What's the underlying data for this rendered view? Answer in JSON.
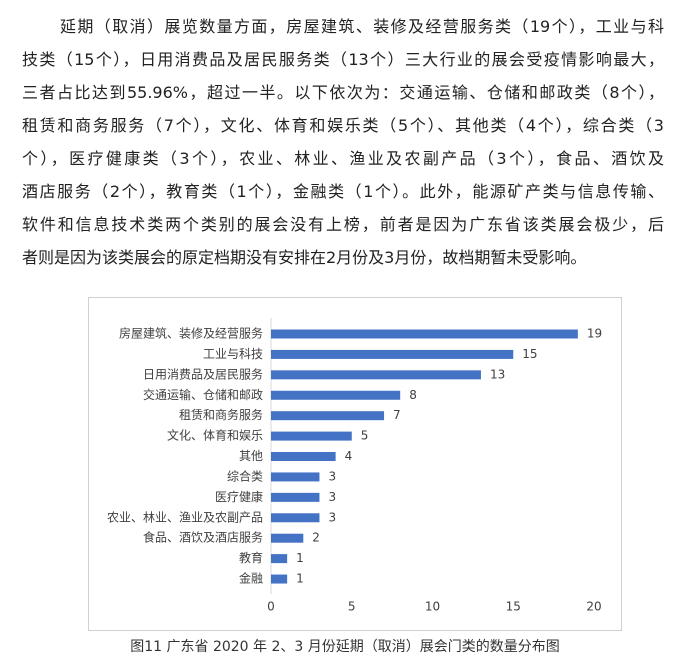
{
  "paragraph": [
    "延期（取消）展览数量方面，房屋建筑、装修及经营服务类（19个），工业与科",
    "技类（15个），日用消费品及居民服务类（13个）三大行业的展会受疫情影响最大，",
    "三者占比达到55.96%，超过一半。以下依次为：交通运输、仓储和邮政类（8个），",
    "租赁和商务服务（7个），文化、体育和娱乐类（5个）、其他类（4个），综合类（3",
    "个），医疗健康类（3个），农业、林业、渔业及农副产品（3个），食品、酒饮及",
    "酒店服务（2个），教育类（1个），金融类（1个）。此外，能源矿产类与信息传输、",
    "软件和信息技术类两个类别的展会没有上榜，前者是因为广东省该类展会极少，后",
    "者则是因为该类展会的原定档期没有安排在2月份及3月份，故档期暂未受影响。"
  ],
  "chart_data": {
    "type": "bar",
    "orientation": "horizontal",
    "categories": [
      "房屋建筑、装修及经营服务",
      "工业与科技",
      "日用消费品及居民服务",
      "交通运输、仓储和邮政",
      "租赁和商务服务",
      "文化、体育和娱乐",
      "其他",
      "综合类",
      "医疗健康",
      "农业、林业、渔业及农副产品",
      "食品、酒饮及酒店服务",
      "教育",
      "金融"
    ],
    "values": [
      19,
      15,
      13,
      8,
      7,
      5,
      4,
      3,
      3,
      3,
      2,
      1,
      1
    ],
    "color": "#4472c4",
    "xlim": [
      0,
      20
    ],
    "xticks": [
      0,
      5,
      10,
      15,
      20
    ],
    "grid": false
  },
  "caption": "图11 广东省 2020 年 2、3 月份延期（取消）展会门类的数量分布图"
}
